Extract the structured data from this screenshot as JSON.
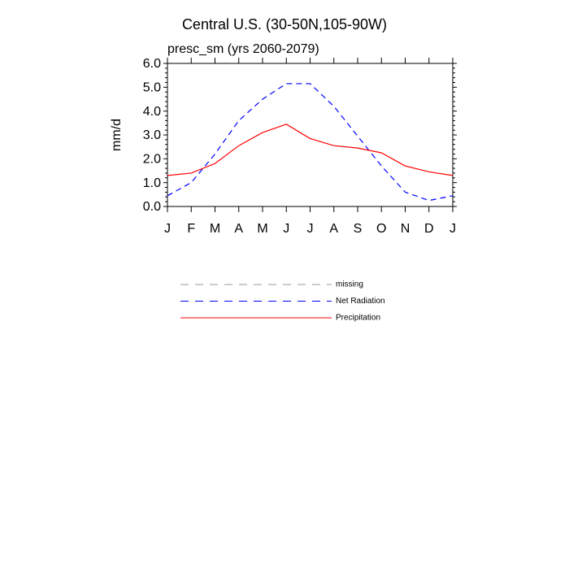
{
  "chart_data": {
    "type": "line",
    "title": "Central U.S. (30-50N,105-90W)",
    "subtitle": "presc_sm (yrs 2060-2079)",
    "y_label": "mm/d",
    "categories": [
      "J",
      "F",
      "M",
      "A",
      "M",
      "J",
      "J",
      "A",
      "S",
      "O",
      "N",
      "D",
      "J"
    ],
    "series": [
      {
        "name": "missing",
        "color": "#999999",
        "dash": true,
        "values": [
          null,
          null,
          null,
          null,
          null,
          null,
          null,
          null,
          null,
          null,
          null,
          null,
          null
        ]
      },
      {
        "name": "Net Radiation",
        "color": "#0000ff",
        "dash": true,
        "values": [
          0.45,
          1.0,
          2.2,
          3.6,
          4.5,
          5.15,
          5.15,
          4.2,
          2.95,
          1.7,
          0.6,
          0.25,
          0.45
        ]
      },
      {
        "name": "Precipitation",
        "color": "#ff0000",
        "dash": false,
        "values": [
          1.3,
          1.4,
          1.8,
          2.55,
          3.1,
          3.45,
          2.85,
          2.55,
          2.45,
          2.25,
          1.7,
          1.45,
          1.3
        ]
      }
    ],
    "ylim": [
      0,
      6
    ],
    "yticks": [
      {
        "value": 0,
        "label": "0.0"
      },
      {
        "value": 1,
        "label": "1.0"
      },
      {
        "value": 2,
        "label": "2.0"
      },
      {
        "value": 3,
        "label": "3.0"
      },
      {
        "value": 4,
        "label": "4.0"
      },
      {
        "value": 5,
        "label": "5.0"
      },
      {
        "value": 6,
        "label": "6.0"
      }
    ]
  }
}
